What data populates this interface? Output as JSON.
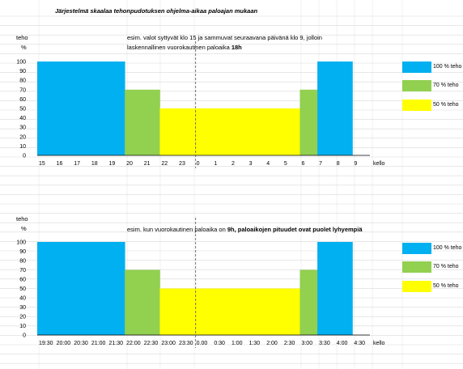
{
  "colors": {
    "full": "#00B0F0",
    "seventy": "#92D050",
    "fifty": "#FFFF00",
    "grid": "#DADADA",
    "axis": "#000000"
  },
  "title": "Järjestelmä skaalaa tehonpudotuksen ohjelma-aikaa paloajan mukaan",
  "chart_data": [
    {
      "type": "bar",
      "ylabel_top": "teho",
      "ylabel_unit": "%",
      "xlabel": "kello",
      "ylim": [
        0,
        100
      ],
      "yticks": [
        "100",
        "90",
        "80",
        "70",
        "60",
        "50",
        "40",
        "30",
        "20",
        "10",
        "0"
      ],
      "categories": [
        "15",
        "16",
        "17",
        "18",
        "19",
        "20",
        "21",
        "22",
        "23",
        "0",
        "1",
        "2",
        "3",
        "4",
        "5",
        "6",
        "7",
        "8",
        "9"
      ],
      "values": [
        100,
        100,
        100,
        100,
        100,
        70,
        70,
        50,
        50,
        50,
        50,
        50,
        50,
        50,
        50,
        70,
        100,
        100,
        null
      ],
      "annotation_line1": "esim. valot syttyvät klo 15 ja sammuvat seuraavana päivänä klo 9, jolloin",
      "annotation_line2_prefix": "laskennallinen vuorokautinen paloaika ",
      "annotation_line2_bold": "18h",
      "legend": [
        "100 % teho",
        "70 % teho",
        "50 % teho"
      ]
    },
    {
      "type": "bar",
      "ylabel_top": "teho",
      "ylabel_unit": "%",
      "xlabel": "kello",
      "ylim": [
        0,
        100
      ],
      "yticks": [
        "100",
        "90",
        "80",
        "70",
        "60",
        "50",
        "40",
        "30",
        "20",
        "10",
        "0"
      ],
      "categories": [
        "19:30",
        "20:00",
        "20:30",
        "21:00",
        "21:30",
        "22:00",
        "22:30",
        "23:00",
        "23:30",
        "0.00",
        "0:30",
        "1:00",
        "1:30",
        "2:00",
        "2:30",
        "3:00",
        "3:30",
        "4:00",
        "4:30"
      ],
      "values": [
        100,
        100,
        100,
        100,
        100,
        70,
        70,
        50,
        50,
        50,
        50,
        50,
        50,
        50,
        50,
        70,
        100,
        100,
        null
      ],
      "annotation_line1_prefix": "esim. kun vuorokautinen paloaika on ",
      "annotation_line1_bold": "9h, paloaikojen pituudet ovat puolet lyhyempiä",
      "legend": [
        "100 % teho",
        "70 % teho",
        "50 % teho"
      ]
    }
  ]
}
